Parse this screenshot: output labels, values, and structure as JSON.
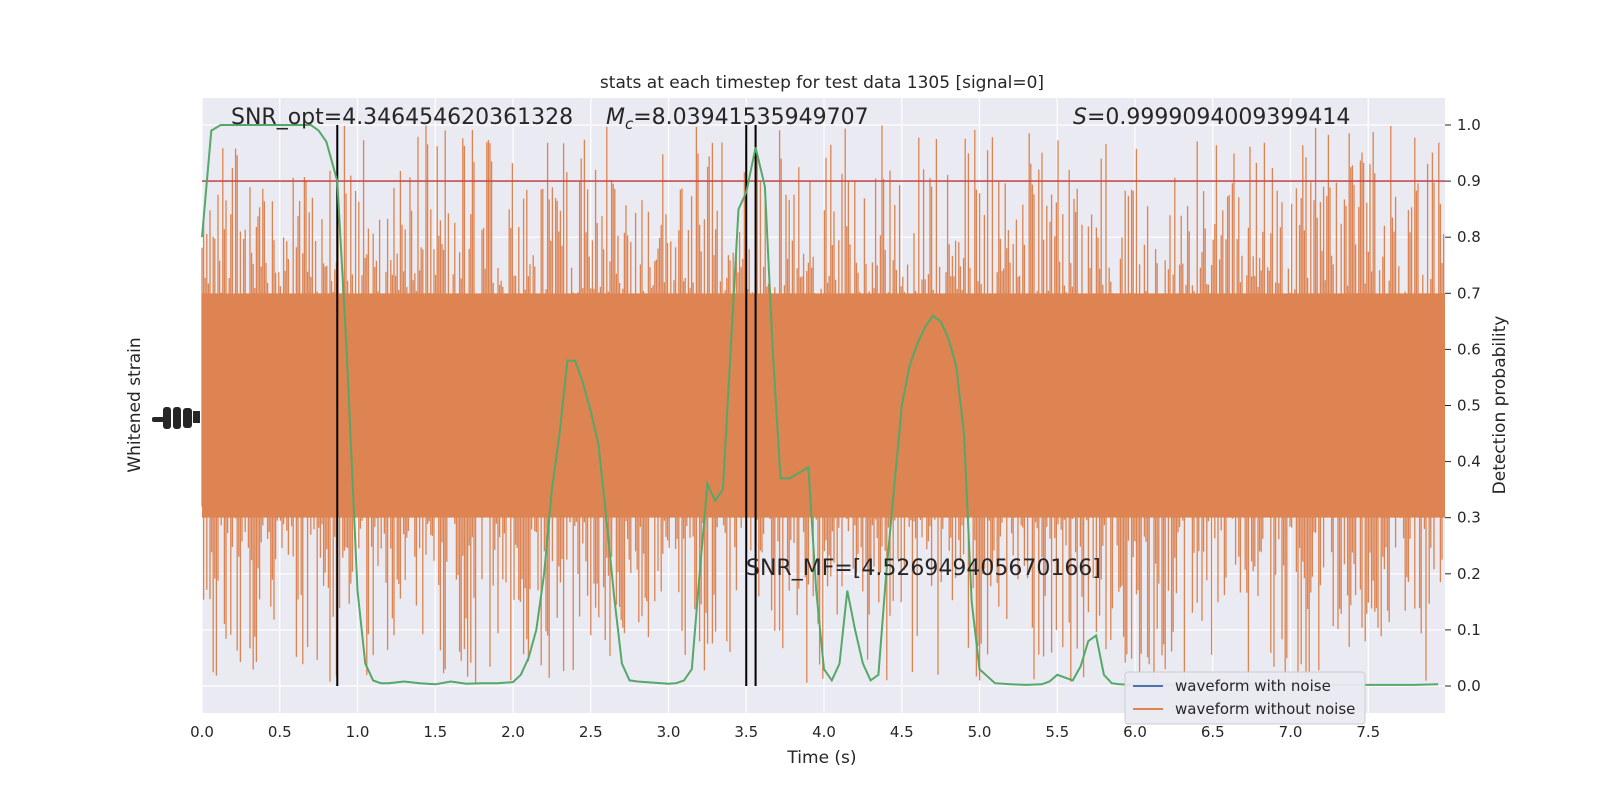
{
  "chart_data": {
    "type": "line",
    "title": "stats at each timestep for test data 1305 [signal=0]",
    "xlabel": "Time (s)",
    "ylabel_left": "Whitened strain",
    "ylabel_right": "Detection probability",
    "xlim": [
      0,
      8
    ],
    "ylim_right": [
      -0.05,
      1.05
    ],
    "x_ticks": [
      "0.0",
      "0.5",
      "1.0",
      "1.5",
      "2.0",
      "2.5",
      "3.0",
      "3.5",
      "4.0",
      "4.5",
      "5.0",
      "5.5",
      "6.0",
      "6.5",
      "7.0",
      "7.5"
    ],
    "y_ticks_right": [
      "0.0",
      "0.1",
      "0.2",
      "0.3",
      "0.4",
      "0.5",
      "0.6",
      "0.7",
      "0.8",
      "0.9",
      "1.0"
    ],
    "grid": true,
    "threshold": 0.9,
    "vlines": [
      0.87,
      3.5,
      3.56
    ],
    "annotations": {
      "snr_opt": "SNR_opt=4.346454620361328",
      "mc": "=8.03941535949707",
      "s": "=0.9999094009399414",
      "snr_mf": "SNR_MF=[4.526949405670166]"
    },
    "series": [
      {
        "name": "waveform with noise",
        "color": "#4c72b0"
      },
      {
        "name": "waveform without noise",
        "color": "#dd8452"
      },
      {
        "color": "#55a868",
        "x": [
          0.0,
          0.06,
          0.12,
          0.2,
          0.3,
          0.4,
          0.5,
          0.6,
          0.7,
          0.75,
          0.8,
          0.87,
          0.93,
          1.0,
          1.05,
          1.1,
          1.15,
          1.2,
          1.3,
          1.4,
          1.5,
          1.6,
          1.7,
          1.8,
          1.9,
          2.0,
          2.05,
          2.1,
          2.15,
          2.2,
          2.25,
          2.3,
          2.35,
          2.4,
          2.45,
          2.5,
          2.55,
          2.6,
          2.65,
          2.7,
          2.75,
          2.8,
          2.9,
          3.0,
          3.05,
          3.1,
          3.15,
          3.2,
          3.25,
          3.3,
          3.35,
          3.4,
          3.45,
          3.5,
          3.56,
          3.62,
          3.67,
          3.72,
          3.78,
          3.84,
          3.9,
          3.95,
          4.0,
          4.05,
          4.1,
          4.15,
          4.2,
          4.25,
          4.3,
          4.35,
          4.4,
          4.45,
          4.5,
          4.55,
          4.6,
          4.65,
          4.7,
          4.75,
          4.8,
          4.85,
          4.9,
          4.95,
          5.0,
          5.1,
          5.2,
          5.3,
          5.4,
          5.45,
          5.5,
          5.55,
          5.6,
          5.65,
          5.7,
          5.75,
          5.8,
          5.85,
          5.9,
          6.0,
          6.2,
          6.4,
          6.6,
          6.8,
          7.0,
          7.2,
          7.4,
          7.6,
          7.8,
          7.95
        ],
        "values": [
          0.8,
          0.99,
          1.0,
          1.0,
          1.0,
          1.0,
          1.0,
          1.0,
          1.0,
          0.99,
          0.97,
          0.9,
          0.6,
          0.17,
          0.04,
          0.01,
          0.005,
          0.005,
          0.008,
          0.005,
          0.003,
          0.008,
          0.004,
          0.005,
          0.005,
          0.007,
          0.02,
          0.05,
          0.1,
          0.2,
          0.35,
          0.45,
          0.58,
          0.58,
          0.54,
          0.49,
          0.43,
          0.3,
          0.16,
          0.04,
          0.01,
          0.008,
          0.006,
          0.004,
          0.005,
          0.01,
          0.03,
          0.2,
          0.36,
          0.33,
          0.35,
          0.6,
          0.85,
          0.88,
          0.96,
          0.89,
          0.6,
          0.37,
          0.37,
          0.38,
          0.39,
          0.17,
          0.03,
          0.01,
          0.04,
          0.17,
          0.1,
          0.04,
          0.01,
          0.02,
          0.2,
          0.35,
          0.5,
          0.57,
          0.61,
          0.64,
          0.66,
          0.65,
          0.62,
          0.57,
          0.45,
          0.15,
          0.03,
          0.005,
          0.003,
          0.002,
          0.003,
          0.008,
          0.02,
          0.015,
          0.01,
          0.035,
          0.08,
          0.09,
          0.02,
          0.005,
          0.003,
          0.002,
          0.002,
          0.002,
          0.002,
          0.002,
          0.002,
          0.002,
          0.002,
          0.002,
          0.002,
          0.003
        ]
      }
    ]
  }
}
